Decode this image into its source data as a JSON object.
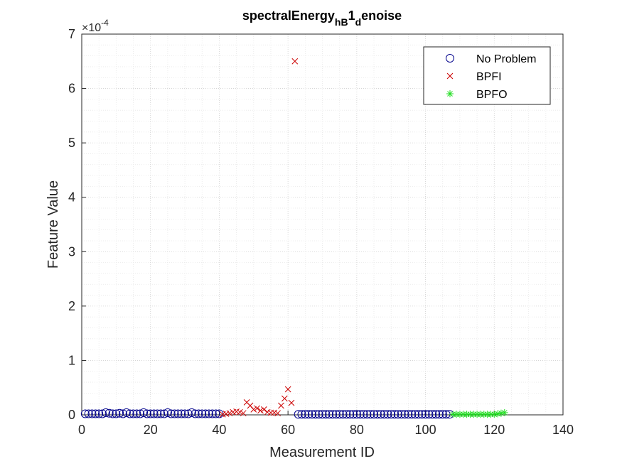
{
  "chart_data": {
    "type": "scatter",
    "title": "spectralEnergy",
    "title_subscript": "hB",
    "title_mid": "1",
    "title_subscript2": "d",
    "title_tail": "enoise",
    "xlabel": "Measurement ID",
    "ylabel": "Feature Value",
    "y_exponent_base": "×10",
    "y_exponent_power": "-4",
    "xlim": [
      0,
      140
    ],
    "ylim": [
      0,
      7
    ],
    "xticks": [
      0,
      20,
      40,
      60,
      80,
      100,
      120,
      140
    ],
    "yticks": [
      0,
      1,
      2,
      3,
      4,
      5,
      6,
      7
    ],
    "grid": "on, dotted, with minor grid",
    "legend_position": "top-right",
    "series": [
      {
        "name": "No Problem",
        "marker": "circle",
        "color": "#00008B",
        "points": [
          [
            1,
            0.02
          ],
          [
            2,
            0.02
          ],
          [
            3,
            0.02
          ],
          [
            4,
            0.02
          ],
          [
            5,
            0.02
          ],
          [
            6,
            0.02
          ],
          [
            7,
            0.04
          ],
          [
            8,
            0.03
          ],
          [
            9,
            0.02
          ],
          [
            10,
            0.02
          ],
          [
            11,
            0.03
          ],
          [
            12,
            0.02
          ],
          [
            13,
            0.04
          ],
          [
            14,
            0.02
          ],
          [
            15,
            0.02
          ],
          [
            16,
            0.02
          ],
          [
            17,
            0.02
          ],
          [
            18,
            0.04
          ],
          [
            19,
            0.02
          ],
          [
            20,
            0.02
          ],
          [
            21,
            0.02
          ],
          [
            22,
            0.02
          ],
          [
            23,
            0.02
          ],
          [
            24,
            0.02
          ],
          [
            25,
            0.04
          ],
          [
            26,
            0.02
          ],
          [
            27,
            0.02
          ],
          [
            28,
            0.02
          ],
          [
            29,
            0.02
          ],
          [
            30,
            0.02
          ],
          [
            31,
            0.02
          ],
          [
            32,
            0.04
          ],
          [
            33,
            0.02
          ],
          [
            34,
            0.02
          ],
          [
            35,
            0.02
          ],
          [
            36,
            0.02
          ],
          [
            37,
            0.02
          ],
          [
            38,
            0.02
          ],
          [
            39,
            0.02
          ],
          [
            40,
            0.02
          ],
          [
            63,
            0.01
          ],
          [
            64,
            0.01
          ],
          [
            65,
            0.01
          ],
          [
            66,
            0.01
          ],
          [
            67,
            0.01
          ],
          [
            68,
            0.01
          ],
          [
            69,
            0.01
          ],
          [
            70,
            0.01
          ],
          [
            71,
            0.01
          ],
          [
            72,
            0.01
          ],
          [
            73,
            0.01
          ],
          [
            74,
            0.01
          ],
          [
            75,
            0.01
          ],
          [
            76,
            0.01
          ],
          [
            77,
            0.01
          ],
          [
            78,
            0.01
          ],
          [
            79,
            0.01
          ],
          [
            80,
            0.01
          ],
          [
            81,
            0.01
          ],
          [
            82,
            0.01
          ],
          [
            83,
            0.01
          ],
          [
            84,
            0.01
          ],
          [
            85,
            0.01
          ],
          [
            86,
            0.01
          ],
          [
            87,
            0.01
          ],
          [
            88,
            0.01
          ],
          [
            89,
            0.01
          ],
          [
            90,
            0.01
          ],
          [
            91,
            0.01
          ],
          [
            92,
            0.01
          ],
          [
            93,
            0.01
          ],
          [
            94,
            0.01
          ],
          [
            95,
            0.01
          ],
          [
            96,
            0.01
          ],
          [
            97,
            0.01
          ],
          [
            98,
            0.01
          ],
          [
            99,
            0.01
          ],
          [
            100,
            0.01
          ],
          [
            101,
            0.01
          ],
          [
            102,
            0.01
          ],
          [
            103,
            0.01
          ],
          [
            104,
            0.01
          ],
          [
            105,
            0.01
          ],
          [
            106,
            0.01
          ],
          [
            107,
            0.01
          ]
        ]
      },
      {
        "name": "BPFI",
        "marker": "x",
        "color": "#CC0000",
        "points": [
          [
            41,
            0.01
          ],
          [
            42,
            0.02
          ],
          [
            43,
            0.03
          ],
          [
            44,
            0.05
          ],
          [
            45,
            0.06
          ],
          [
            46,
            0.05
          ],
          [
            47,
            0.03
          ],
          [
            48,
            0.23
          ],
          [
            49,
            0.17
          ],
          [
            50,
            0.1
          ],
          [
            51,
            0.12
          ],
          [
            52,
            0.08
          ],
          [
            53,
            0.1
          ],
          [
            54,
            0.05
          ],
          [
            55,
            0.04
          ],
          [
            56,
            0.04
          ],
          [
            57,
            0.03
          ],
          [
            58,
            0.17
          ],
          [
            59,
            0.3
          ],
          [
            60,
            0.47
          ],
          [
            61,
            0.22
          ],
          [
            62,
            6.5
          ]
        ]
      },
      {
        "name": "BPFO",
        "marker": "asterisk",
        "color": "#22DD22",
        "points": [
          [
            108,
            0.01
          ],
          [
            109,
            0.01
          ],
          [
            110,
            0.01
          ],
          [
            111,
            0.01
          ],
          [
            112,
            0.01
          ],
          [
            113,
            0.01
          ],
          [
            114,
            0.01
          ],
          [
            115,
            0.01
          ],
          [
            116,
            0.01
          ],
          [
            117,
            0.01
          ],
          [
            118,
            0.01
          ],
          [
            119,
            0.01
          ],
          [
            120,
            0.01
          ],
          [
            121,
            0.02
          ],
          [
            122,
            0.03
          ],
          [
            123,
            0.04
          ]
        ]
      }
    ]
  }
}
